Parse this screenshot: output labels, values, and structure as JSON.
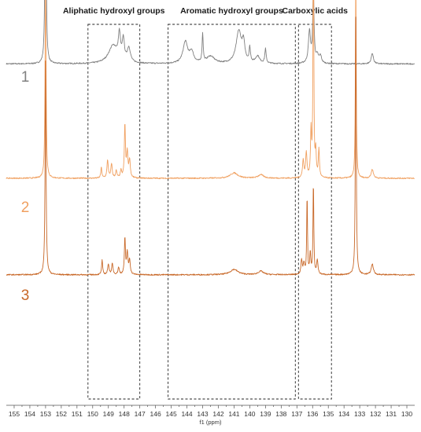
{
  "chart_data": {
    "type": "line",
    "xlabel": "f1 (ppm)",
    "xlim": [
      155.5,
      129.5
    ],
    "x_reversed": true,
    "ticks": [
      155,
      154,
      153,
      152,
      151,
      150,
      149,
      148,
      147,
      146,
      145,
      144,
      143,
      142,
      141,
      140,
      139,
      138,
      137,
      136,
      135,
      134,
      133,
      132,
      131,
      130
    ],
    "regions": [
      {
        "label": "Aliphatic hydroxyl groups",
        "x_range": [
          150.3,
          147.0
        ]
      },
      {
        "label": "Aromatic hydroxyl groups",
        "x_range": [
          145.2,
          137.1
        ]
      },
      {
        "label": "Carboxylic acids",
        "x_range": [
          136.9,
          134.8
        ]
      }
    ],
    "series": [
      {
        "name": "1",
        "color": "#808080",
        "baseline_level": 0.92,
        "peaks": [
          {
            "ppm": 153.0,
            "h": 0.82,
            "w": 0.035
          },
          {
            "ppm": 148.7,
            "h": 0.05,
            "w": 0.35
          },
          {
            "ppm": 148.3,
            "h": 0.07,
            "w": 0.08
          },
          {
            "ppm": 148.05,
            "h": 0.06,
            "w": 0.08
          },
          {
            "ppm": 147.7,
            "h": 0.04,
            "w": 0.12
          },
          {
            "ppm": 144.1,
            "h": 0.06,
            "w": 0.18
          },
          {
            "ppm": 143.7,
            "h": 0.03,
            "w": 0.15
          },
          {
            "ppm": 143.0,
            "h": 0.08,
            "w": 0.04
          },
          {
            "ppm": 142.5,
            "h": 0.02,
            "w": 0.3
          },
          {
            "ppm": 140.7,
            "h": 0.09,
            "w": 0.2
          },
          {
            "ppm": 140.4,
            "h": 0.05,
            "w": 0.1
          },
          {
            "ppm": 140.0,
            "h": 0.04,
            "w": 0.05
          },
          {
            "ppm": 139.5,
            "h": 0.02,
            "w": 0.15
          },
          {
            "ppm": 139.0,
            "h": 0.04,
            "w": 0.05
          },
          {
            "ppm": 136.2,
            "h": 0.09,
            "w": 0.08
          },
          {
            "ppm": 135.95,
            "h": 0.2,
            "w": 0.05
          },
          {
            "ppm": 135.7,
            "h": 0.02,
            "w": 0.1
          },
          {
            "ppm": 135.5,
            "h": 0.02,
            "w": 0.08
          },
          {
            "ppm": 132.2,
            "h": 0.03,
            "w": 0.08
          }
        ]
      },
      {
        "name": "2",
        "color": "#f0a060",
        "baseline_level": 0.6,
        "peaks": [
          {
            "ppm": 153.0,
            "h": 0.6,
            "w": 0.035
          },
          {
            "ppm": 149.45,
            "h": 0.03,
            "w": 0.04
          },
          {
            "ppm": 149.05,
            "h": 0.05,
            "w": 0.05
          },
          {
            "ppm": 148.8,
            "h": 0.04,
            "w": 0.05
          },
          {
            "ppm": 148.5,
            "h": 0.02,
            "w": 0.05
          },
          {
            "ppm": 148.2,
            "h": 0.02,
            "w": 0.05
          },
          {
            "ppm": 147.95,
            "h": 0.15,
            "w": 0.04
          },
          {
            "ppm": 147.8,
            "h": 0.07,
            "w": 0.05
          },
          {
            "ppm": 147.65,
            "h": 0.05,
            "w": 0.05
          },
          {
            "ppm": 141.0,
            "h": 0.015,
            "w": 0.3
          },
          {
            "ppm": 139.3,
            "h": 0.01,
            "w": 0.2
          },
          {
            "ppm": 136.6,
            "h": 0.05,
            "w": 0.05
          },
          {
            "ppm": 136.4,
            "h": 0.07,
            "w": 0.05
          },
          {
            "ppm": 136.1,
            "h": 0.13,
            "w": 0.04
          },
          {
            "ppm": 135.95,
            "h": 0.86,
            "w": 0.025
          },
          {
            "ppm": 135.8,
            "h": 0.07,
            "w": 0.04
          },
          {
            "ppm": 135.6,
            "h": 0.08,
            "w": 0.04
          },
          {
            "ppm": 133.25,
            "h": 0.58,
            "w": 0.03
          },
          {
            "ppm": 132.2,
            "h": 0.025,
            "w": 0.08
          }
        ]
      },
      {
        "name": "3",
        "color": "#c86828",
        "baseline_level": 0.33,
        "peaks": [
          {
            "ppm": 153.0,
            "h": 0.6,
            "w": 0.035
          },
          {
            "ppm": 149.4,
            "h": 0.04,
            "w": 0.04
          },
          {
            "ppm": 149.0,
            "h": 0.03,
            "w": 0.05
          },
          {
            "ppm": 148.75,
            "h": 0.03,
            "w": 0.05
          },
          {
            "ppm": 148.35,
            "h": 0.02,
            "w": 0.05
          },
          {
            "ppm": 147.95,
            "h": 0.1,
            "w": 0.04
          },
          {
            "ppm": 147.8,
            "h": 0.06,
            "w": 0.05
          },
          {
            "ppm": 147.65,
            "h": 0.04,
            "w": 0.05
          },
          {
            "ppm": 141.0,
            "h": 0.015,
            "w": 0.3
          },
          {
            "ppm": 139.3,
            "h": 0.01,
            "w": 0.2
          },
          {
            "ppm": 136.7,
            "h": 0.04,
            "w": 0.05
          },
          {
            "ppm": 136.55,
            "h": 0.03,
            "w": 0.05
          },
          {
            "ppm": 136.35,
            "h": 0.22,
            "w": 0.03
          },
          {
            "ppm": 136.15,
            "h": 0.06,
            "w": 0.04
          },
          {
            "ppm": 135.95,
            "h": 0.26,
            "w": 0.03
          },
          {
            "ppm": 135.7,
            "h": 0.04,
            "w": 0.05
          },
          {
            "ppm": 133.25,
            "h": 0.8,
            "w": 0.03
          },
          {
            "ppm": 132.2,
            "h": 0.03,
            "w": 0.08
          }
        ]
      }
    ]
  }
}
